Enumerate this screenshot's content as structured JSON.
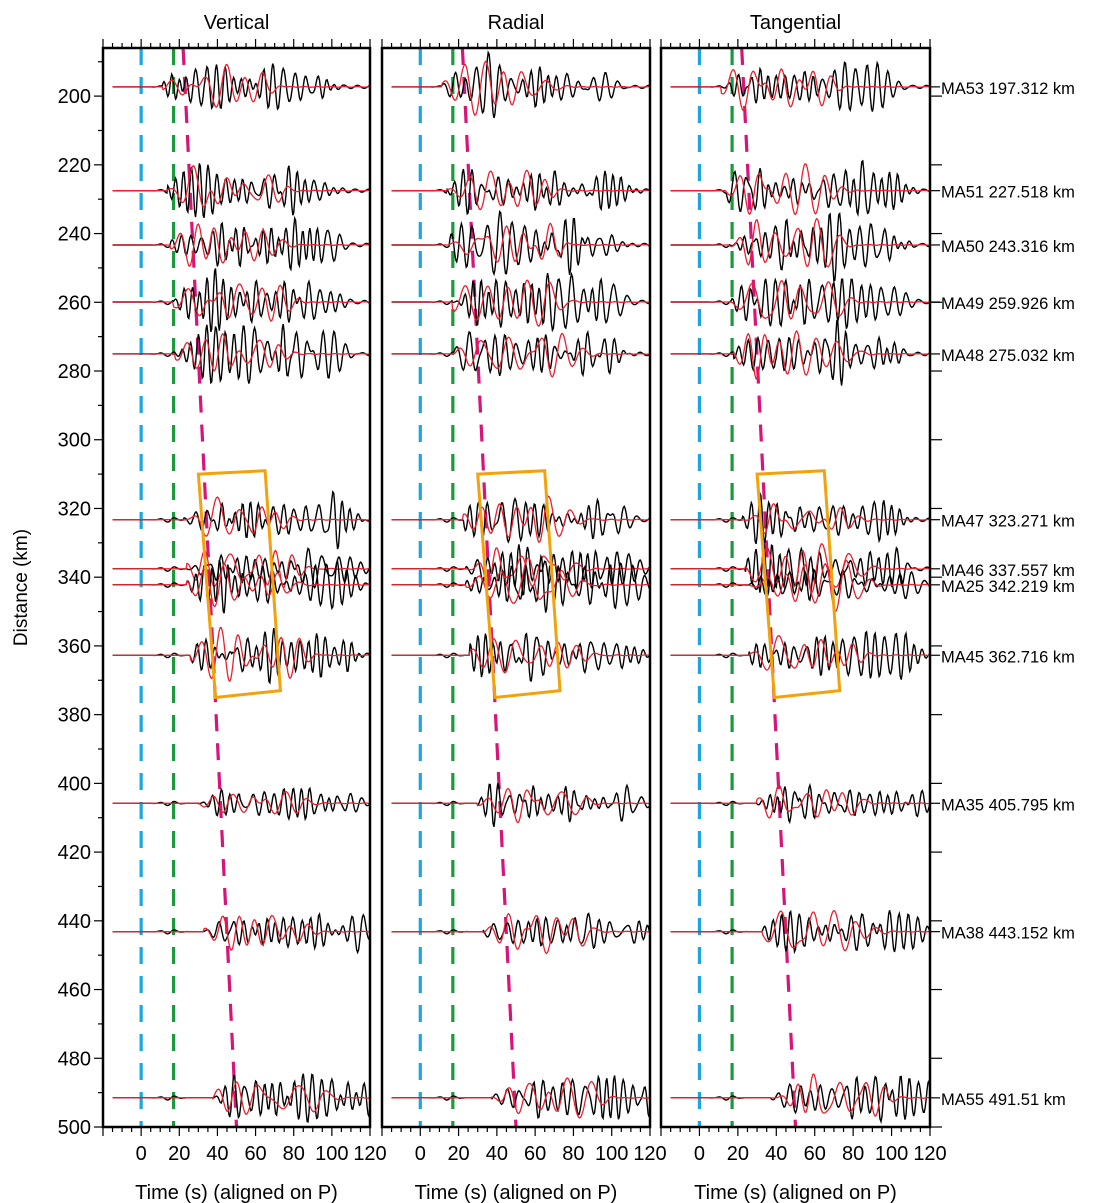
{
  "chart_data": {
    "type": "line",
    "ylabel": "Distance (km)",
    "ylim": [
      500,
      186
    ],
    "y_ticks": [
      200,
      220,
      240,
      260,
      280,
      300,
      320,
      340,
      360,
      380,
      400,
      420,
      440,
      460,
      480,
      500
    ],
    "xlim": [
      -20,
      120
    ],
    "x_ticks": [
      0,
      20,
      40,
      60,
      80,
      100,
      120
    ],
    "grid": false,
    "panels": [
      {
        "title": "Vertical",
        "xlabel": "Time (s) (aligned on P)"
      },
      {
        "title": "Radial",
        "xlabel": "Time (s) (aligned on P)"
      },
      {
        "title": "Tangential",
        "xlabel": "Time (s) (aligned on P)"
      }
    ],
    "stations": [
      {
        "label": "MA53 197.312 km",
        "distance": 197.312
      },
      {
        "label": "MA51 227.518 km",
        "distance": 227.518
      },
      {
        "label": "MA50 243.316 km",
        "distance": 243.316
      },
      {
        "label": "MA49 259.926 km",
        "distance": 259.926
      },
      {
        "label": "MA48 275.032 km",
        "distance": 275.032
      },
      {
        "label": "MA47 323.271 km",
        "distance": 323.271
      },
      {
        "label": "MA46 337.557 km",
        "distance": 337.557
      },
      {
        "label": "MA25 342.219 km",
        "distance": 342.219
      },
      {
        "label": "MA45 362.716 km",
        "distance": 362.716
      },
      {
        "label": "MA35 405.795 km",
        "distance": 405.795
      },
      {
        "label": "MA38 443.152 km",
        "distance": 443.152
      },
      {
        "label": "MA55 491.51 km",
        "distance": 491.51
      }
    ],
    "series": [
      {
        "color": "#000000"
      },
      {
        "color": "#e8202f"
      }
    ],
    "reference_lines": [
      {
        "color": "#1ba6df",
        "style": "dashed",
        "points": [
          [
            0,
            186
          ],
          [
            0,
            500
          ]
        ]
      },
      {
        "color": "#1a9a3c",
        "style": "dashed",
        "points": [
          [
            17,
            186
          ],
          [
            17,
            500
          ]
        ]
      },
      {
        "color": "#d6147a",
        "style": "dashed",
        "points": [
          [
            22,
            186
          ],
          [
            50,
            500
          ]
        ]
      }
    ],
    "highlight_box": {
      "color": "#f2a20c",
      "corners": [
        [
          30,
          310
        ],
        [
          65,
          309
        ],
        [
          73,
          373
        ],
        [
          39,
          375
        ]
      ]
    }
  }
}
